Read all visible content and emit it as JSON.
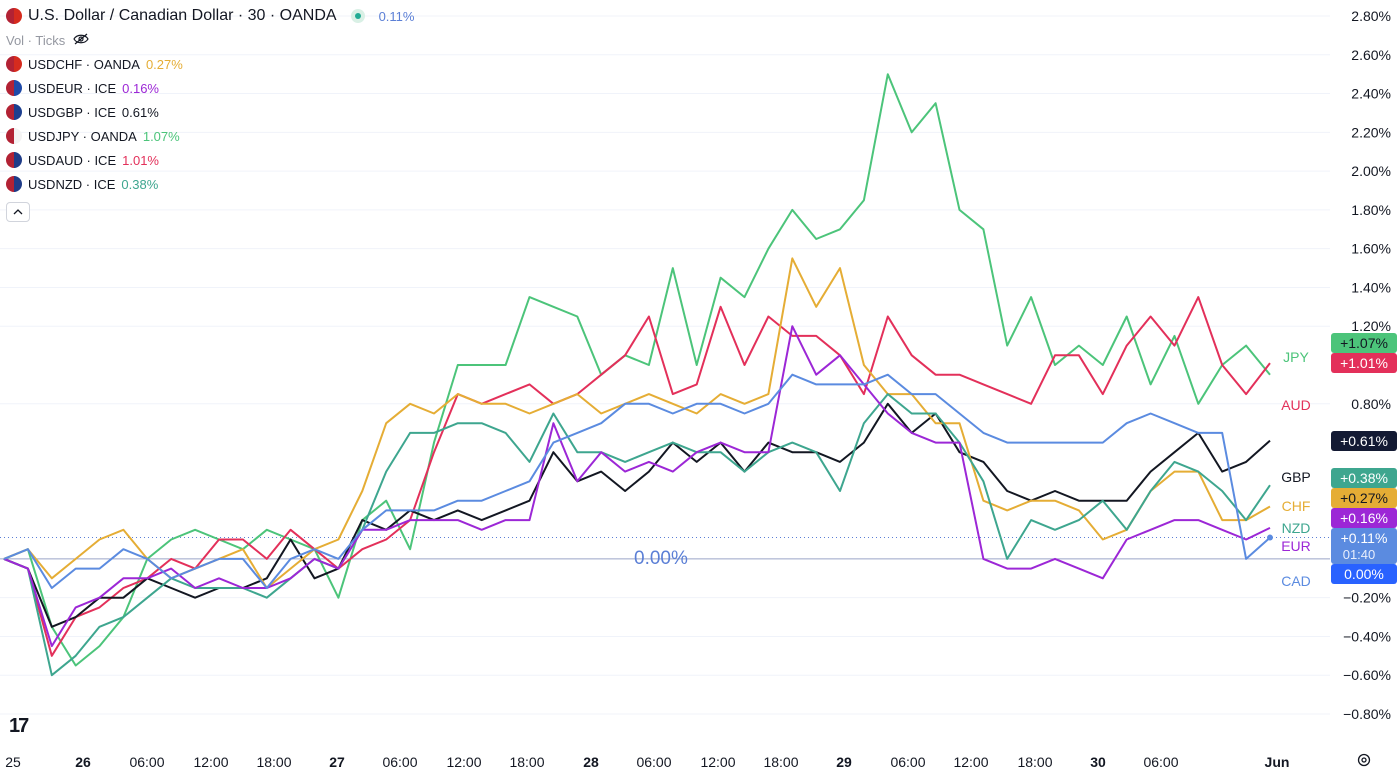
{
  "header": {
    "title": "U.S. Dollar / Canadian Dollar · 30 · OANDA",
    "change": "0.11%",
    "change_color": "#5b7fd6",
    "vol_label": "Vol · Ticks",
    "eye_icon": "eye-slash-icon"
  },
  "legend": [
    {
      "symbol": "USDCHF · OANDA",
      "pct": "0.27%",
      "color": "#e5ad35",
      "flag": [
        "#b22234",
        "#d52b1e"
      ]
    },
    {
      "symbol": "USDEUR · ICE",
      "pct": "0.16%",
      "color": "#9c27d6",
      "flag": [
        "#b22234",
        "#1f4aa8"
      ]
    },
    {
      "symbol": "USDGBP · ICE",
      "pct": "0.61%",
      "color": "#131722",
      "flag": [
        "#b22234",
        "#1d3f8f"
      ]
    },
    {
      "symbol": "USDJPY · OANDA",
      "pct": "1.07%",
      "color": "#4cc47a",
      "flag": [
        "#b22234",
        "#f3f3f3"
      ]
    },
    {
      "symbol": "USDAUD · ICE",
      "pct": "1.01%",
      "color": "#e3305a",
      "flag": [
        "#b22234",
        "#1f3c88"
      ]
    },
    {
      "symbol": "USDNZD · ICE",
      "pct": "0.38%",
      "color": "#3ea68f",
      "flag": [
        "#b22234",
        "#1f3c88"
      ]
    }
  ],
  "collapse_icon": "chevron-up-icon",
  "y_axis": {
    "ticks": [
      "2.80%",
      "2.60%",
      "2.40%",
      "2.20%",
      "2.00%",
      "1.80%",
      "1.60%",
      "1.40%",
      "1.20%",
      "0.80%",
      "−0.20%",
      "−0.40%",
      "−0.60%",
      "−0.80%"
    ],
    "tick_values": [
      2.8,
      2.6,
      2.4,
      2.2,
      2.0,
      1.8,
      1.6,
      1.4,
      1.2,
      0.8,
      -0.2,
      -0.4,
      -0.6,
      -0.8
    ]
  },
  "x_axis": {
    "labels": [
      "25",
      "26",
      "06:00",
      "12:00",
      "18:00",
      "27",
      "06:00",
      "12:00",
      "18:00",
      "28",
      "06:00",
      "12:00",
      "18:00",
      "29",
      "06:00",
      "12:00",
      "18:00",
      "30",
      "06:00",
      "Jun"
    ],
    "bold": [
      "26",
      "27",
      "28",
      "29",
      "30",
      "Jun"
    ]
  },
  "zero_line_label": "0.00%",
  "badges": [
    {
      "text": "+1.07%",
      "bg": "#4cc47a",
      "fg": "#131722"
    },
    {
      "text": "+1.01%",
      "bg": "#e3305a",
      "fg": "#ffffff"
    },
    {
      "text": "+0.61%",
      "bg": "#131a33",
      "fg": "#ffffff"
    },
    {
      "text": "+0.38%",
      "bg": "#3ea68f",
      "fg": "#ffffff"
    },
    {
      "text": "+0.27%",
      "bg": "#e5ad35",
      "fg": "#131722"
    },
    {
      "text": "+0.16%",
      "bg": "#9c27d6",
      "fg": "#ffffff"
    },
    {
      "text": "+0.11%",
      "bg": "#5b8be0",
      "fg": "#ffffff",
      "sub": "01:40"
    },
    {
      "text": "0.00%",
      "bg": "#2962ff",
      "fg": "#ffffff"
    }
  ],
  "series_labels": [
    {
      "text": "JPY",
      "color": "#4cc47a"
    },
    {
      "text": "AUD",
      "color": "#e3305a"
    },
    {
      "text": "GBP",
      "color": "#131722"
    },
    {
      "text": "CHF",
      "color": "#e5ad35"
    },
    {
      "text": "NZD",
      "color": "#3ea68f"
    },
    {
      "text": "EUR",
      "color": "#9c27d6"
    },
    {
      "text": "CAD",
      "color": "#5b8be0"
    }
  ],
  "logo": "17",
  "settings_icon": "gear-icon",
  "chart_data": {
    "type": "line",
    "ylim": [
      -0.8,
      2.8
    ],
    "series": [
      {
        "name": "JPY",
        "color": "#4cc47a",
        "values": [
          0.0,
          0.05,
          -0.35,
          -0.55,
          -0.45,
          -0.3,
          0.0,
          0.1,
          0.15,
          0.1,
          0.05,
          0.15,
          0.1,
          0.05,
          -0.2,
          0.2,
          0.3,
          0.05,
          0.6,
          1.0,
          1.0,
          1.0,
          1.35,
          1.3,
          1.25,
          0.95,
          1.05,
          1.0,
          1.5,
          1.0,
          1.45,
          1.35,
          1.6,
          1.8,
          1.65,
          1.7,
          1.85,
          2.5,
          2.2,
          2.35,
          1.8,
          1.7,
          1.1,
          1.35,
          1.0,
          1.1,
          1.0,
          1.25,
          0.9,
          1.15,
          0.8,
          1.0,
          1.1,
          0.95
        ]
      },
      {
        "name": "AUD",
        "color": "#e3305a",
        "values": [
          0.0,
          -0.05,
          -0.5,
          -0.3,
          -0.25,
          -0.15,
          -0.1,
          0.0,
          -0.05,
          0.1,
          0.1,
          0.0,
          0.15,
          0.05,
          -0.05,
          0.05,
          0.1,
          0.2,
          0.55,
          0.85,
          0.8,
          0.85,
          0.9,
          0.8,
          0.85,
          0.95,
          1.05,
          1.25,
          0.85,
          0.9,
          1.3,
          1.0,
          1.25,
          1.15,
          1.15,
          1.05,
          0.85,
          1.25,
          1.05,
          0.95,
          0.95,
          0.9,
          0.85,
          0.8,
          1.05,
          1.05,
          0.85,
          1.1,
          1.25,
          1.1,
          1.35,
          1.0,
          0.85,
          1.01
        ]
      },
      {
        "name": "GBP",
        "color": "#131722",
        "values": [
          0.0,
          -0.05,
          -0.35,
          -0.3,
          -0.2,
          -0.2,
          -0.1,
          -0.15,
          -0.2,
          -0.15,
          -0.15,
          -0.1,
          0.1,
          -0.1,
          -0.05,
          0.2,
          0.15,
          0.25,
          0.2,
          0.25,
          0.2,
          0.25,
          0.3,
          0.55,
          0.4,
          0.45,
          0.35,
          0.45,
          0.6,
          0.5,
          0.6,
          0.45,
          0.6,
          0.55,
          0.55,
          0.5,
          0.6,
          0.8,
          0.65,
          0.75,
          0.55,
          0.5,
          0.35,
          0.3,
          0.35,
          0.3,
          0.3,
          0.3,
          0.45,
          0.55,
          0.65,
          0.45,
          0.5,
          0.61
        ]
      },
      {
        "name": "CHF",
        "color": "#e5ad35",
        "values": [
          0.0,
          0.05,
          -0.1,
          0.0,
          0.1,
          0.15,
          0.0,
          -0.1,
          -0.05,
          0.0,
          0.05,
          -0.15,
          -0.05,
          0.05,
          0.1,
          0.35,
          0.7,
          0.8,
          0.75,
          0.85,
          0.8,
          0.8,
          0.75,
          0.8,
          0.85,
          0.75,
          0.8,
          0.85,
          0.8,
          0.75,
          0.85,
          0.8,
          0.85,
          1.55,
          1.3,
          1.5,
          1.0,
          0.85,
          0.85,
          0.7,
          0.7,
          0.3,
          0.25,
          0.3,
          0.3,
          0.25,
          0.1,
          0.15,
          0.35,
          0.45,
          0.45,
          0.2,
          0.2,
          0.27
        ]
      },
      {
        "name": "NZD",
        "color": "#3ea68f",
        "values": [
          0.0,
          -0.05,
          -0.6,
          -0.5,
          -0.35,
          -0.3,
          -0.2,
          -0.1,
          -0.15,
          -0.15,
          -0.15,
          -0.2,
          -0.1,
          0.0,
          -0.05,
          0.15,
          0.45,
          0.65,
          0.65,
          0.7,
          0.7,
          0.65,
          0.5,
          0.75,
          0.55,
          0.55,
          0.5,
          0.55,
          0.6,
          0.55,
          0.55,
          0.45,
          0.55,
          0.6,
          0.55,
          0.35,
          0.7,
          0.85,
          0.75,
          0.75,
          0.6,
          0.4,
          0.0,
          0.2,
          0.15,
          0.2,
          0.3,
          0.15,
          0.35,
          0.5,
          0.45,
          0.35,
          0.2,
          0.38
        ]
      },
      {
        "name": "EUR",
        "color": "#9c27d6",
        "values": [
          0.0,
          -0.05,
          -0.45,
          -0.25,
          -0.2,
          -0.1,
          -0.1,
          -0.05,
          -0.15,
          -0.1,
          -0.15,
          -0.15,
          -0.1,
          0.0,
          -0.05,
          0.15,
          0.15,
          0.2,
          0.2,
          0.2,
          0.15,
          0.2,
          0.2,
          0.7,
          0.4,
          0.55,
          0.45,
          0.5,
          0.45,
          0.55,
          0.6,
          0.55,
          0.55,
          1.2,
          0.95,
          1.05,
          0.9,
          0.75,
          0.65,
          0.6,
          0.6,
          0.0,
          -0.05,
          -0.05,
          0.0,
          -0.05,
          -0.1,
          0.1,
          0.15,
          0.2,
          0.2,
          0.15,
          0.1,
          0.16
        ]
      },
      {
        "name": "CAD",
        "color": "#5b8be0",
        "values": [
          0.0,
          0.05,
          -0.15,
          -0.05,
          -0.05,
          0.05,
          0.0,
          -0.1,
          -0.05,
          0.0,
          0.0,
          -0.15,
          0.0,
          0.05,
          0.0,
          0.15,
          0.25,
          0.25,
          0.25,
          0.3,
          0.3,
          0.35,
          0.4,
          0.6,
          0.65,
          0.7,
          0.8,
          0.8,
          0.75,
          0.8,
          0.8,
          0.75,
          0.8,
          0.95,
          0.9,
          0.9,
          0.9,
          0.95,
          0.85,
          0.85,
          0.75,
          0.65,
          0.6,
          0.6,
          0.6,
          0.6,
          0.6,
          0.7,
          0.75,
          0.7,
          0.65,
          0.65,
          0.0,
          0.11
        ]
      }
    ],
    "grid": true
  }
}
